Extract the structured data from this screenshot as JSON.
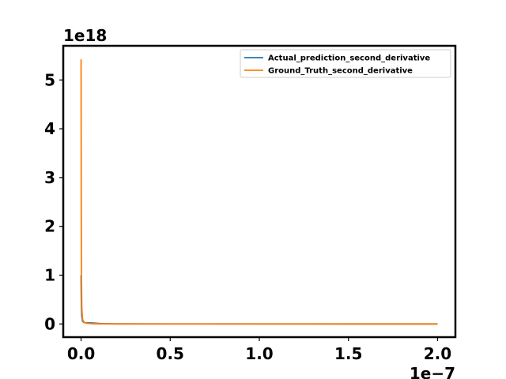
{
  "chart_data": {
    "type": "line",
    "title": "",
    "xlabel": "",
    "ylabel": "",
    "x_offset_text": "1e−7",
    "y_offset_text": "1e18",
    "xlim": [
      -1e-08,
      2.1e-07
    ],
    "ylim": [
      -2.7e+17,
      5.7e+18
    ],
    "x_ticks": [
      0,
      5e-08,
      1e-07,
      1.5e-07,
      2e-07
    ],
    "x_tick_labels": [
      "0.0",
      "0.5",
      "1.0",
      "1.5",
      "2.0"
    ],
    "y_ticks": [
      0,
      1e+18,
      2e+18,
      3e+18,
      4e+18,
      5e+18
    ],
    "y_tick_labels": [
      "0",
      "1",
      "2",
      "3",
      "4",
      "5"
    ],
    "grid": false,
    "legend_position": "top-right",
    "series": [
      {
        "name": "Actual_prediction_second_derivative",
        "color": "#1f77b4",
        "x": [
          0,
          1e-10,
          2e-10,
          4e-10,
          8e-10,
          1.5e-09,
          3e-09,
          6e-09,
          1e-08,
          1.5e-08,
          2e-08,
          5e-08,
          1e-07,
          1.5e-07,
          2e-07
        ],
        "y": [
          1e+18,
          6e+17,
          3.5e+17,
          1.5e+17,
          6e+16,
          3e+16,
          2.5e+16,
          2e+16,
          1e+16,
          4000000000000000.0,
          2000000000000000.0,
          1000000000000000.0,
          500000000000000.0,
          300000000000000.0,
          200000000000000.0
        ]
      },
      {
        "name": "Ground_Truth_second_derivative",
        "color": "#ff7f0e",
        "x": [
          0,
          1e-10,
          2e-10,
          4e-10,
          8e-10,
          1.5e-09,
          3e-09,
          6e-09,
          1e-08,
          1.5e-08,
          2e-08,
          5e-08,
          1e-07,
          1.5e-07,
          2e-07
        ],
        "y": [
          5.42e+18,
          2.5e+18,
          1e+18,
          3.5e+17,
          1e+17,
          4e+16,
          1.5e+16,
          6000000000000000.0,
          3000000000000000.0,
          2000000000000000.0,
          1500000000000000.0,
          700000000000000.0,
          400000000000000.0,
          200000000000000.0,
          100000000000000.0
        ]
      }
    ]
  }
}
